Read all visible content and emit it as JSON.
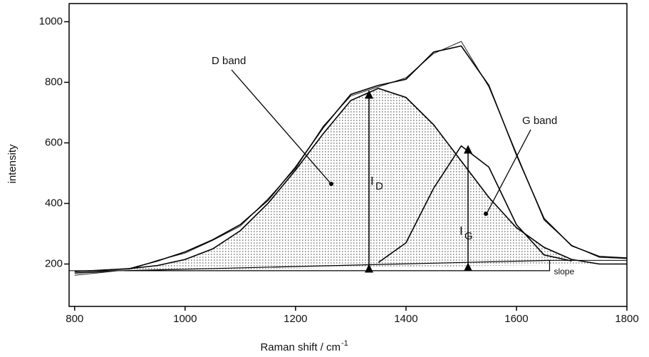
{
  "chart_data": {
    "type": "line",
    "x_label": "Raman shift / cm",
    "x_label_sup": "-1",
    "y_label": "intensity",
    "xlim": [
      790,
      1800
    ],
    "ylim": [
      60,
      1060
    ],
    "xticks": [
      800,
      1000,
      1200,
      1400,
      1600,
      1800
    ],
    "yticks": [
      200,
      400,
      600,
      800,
      1000
    ],
    "x": [
      800,
      850,
      900,
      950,
      1000,
      1050,
      1100,
      1150,
      1200,
      1250,
      1300,
      1350,
      1400,
      1450,
      1500,
      1550,
      1600,
      1650,
      1700,
      1750,
      1800
    ],
    "series": [
      {
        "color": "#222222",
        "values": [
          163,
          172,
          182,
          212,
          236,
          278,
          325,
          415,
          515,
          655,
          755,
          785,
          815,
          895,
          935,
          785,
          565,
          345,
          262,
          222,
          218
        ]
      },
      {
        "color": "#000000",
        "values": [
          170,
          175,
          185,
          210,
          240,
          280,
          330,
          410,
          520,
          650,
          760,
          790,
          810,
          900,
          920,
          790,
          560,
          350,
          260,
          225,
          220
        ]
      },
      {
        "color": "#000000",
        "fill": "#bbbbbb",
        "values": [
          175,
          180,
          185,
          195,
          215,
          250,
          310,
          400,
          510,
          630,
          740,
          780,
          750,
          660,
          540,
          420,
          320,
          255,
          215,
          200,
          200
        ]
      },
      {
        "color": "#000000",
        "values": [
          null,
          null,
          null,
          null,
          null,
          null,
          null,
          null,
          null,
          null,
          null,
          205,
          270,
          450,
          590,
          520,
          330,
          230,
          210,
          null,
          null
        ]
      }
    ],
    "baseline": {
      "x": [
        890,
        1660
      ],
      "values": [
        178,
        212
      ],
      "label": "slope"
    },
    "annotations": [
      {
        "text": "D band"
      },
      {
        "text": "G band"
      },
      {
        "text": "I",
        "sub": "D"
      },
      {
        "text": "I",
        "sub": "G"
      }
    ]
  }
}
